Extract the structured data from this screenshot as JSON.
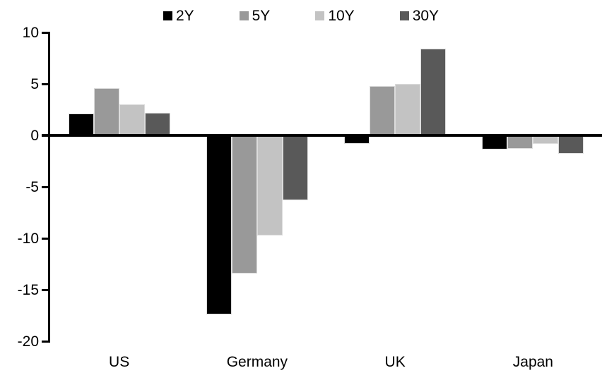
{
  "chart_data": {
    "type": "bar",
    "title": "",
    "xlabel": "",
    "ylabel": "",
    "categories": [
      "US",
      "Germany",
      "UK",
      "Japan"
    ],
    "series": [
      {
        "name": "2Y",
        "color": "#000000",
        "values": [
          2.1,
          -17.4,
          -0.8,
          -1.4
        ]
      },
      {
        "name": "5Y",
        "color": "#999999",
        "values": [
          4.6,
          -13.4,
          4.8,
          -1.3
        ]
      },
      {
        "name": "10Y",
        "color": "#c3c3c3",
        "values": [
          3.0,
          -9.7,
          5.0,
          -0.8
        ]
      },
      {
        "name": "30Y",
        "color": "#595959",
        "values": [
          2.2,
          -6.3,
          8.4,
          -1.8
        ]
      }
    ],
    "ylim": [
      -20,
      10
    ],
    "yticks": [
      10,
      5,
      0,
      -5,
      -10,
      -15,
      -20
    ],
    "ytick_labels": [
      "10",
      "5",
      "0",
      "-5",
      "-10",
      "-15",
      "-20"
    ],
    "grid": false,
    "legend_position": "top-center",
    "axis_color": "#000000",
    "background_color": "#ffffff"
  }
}
